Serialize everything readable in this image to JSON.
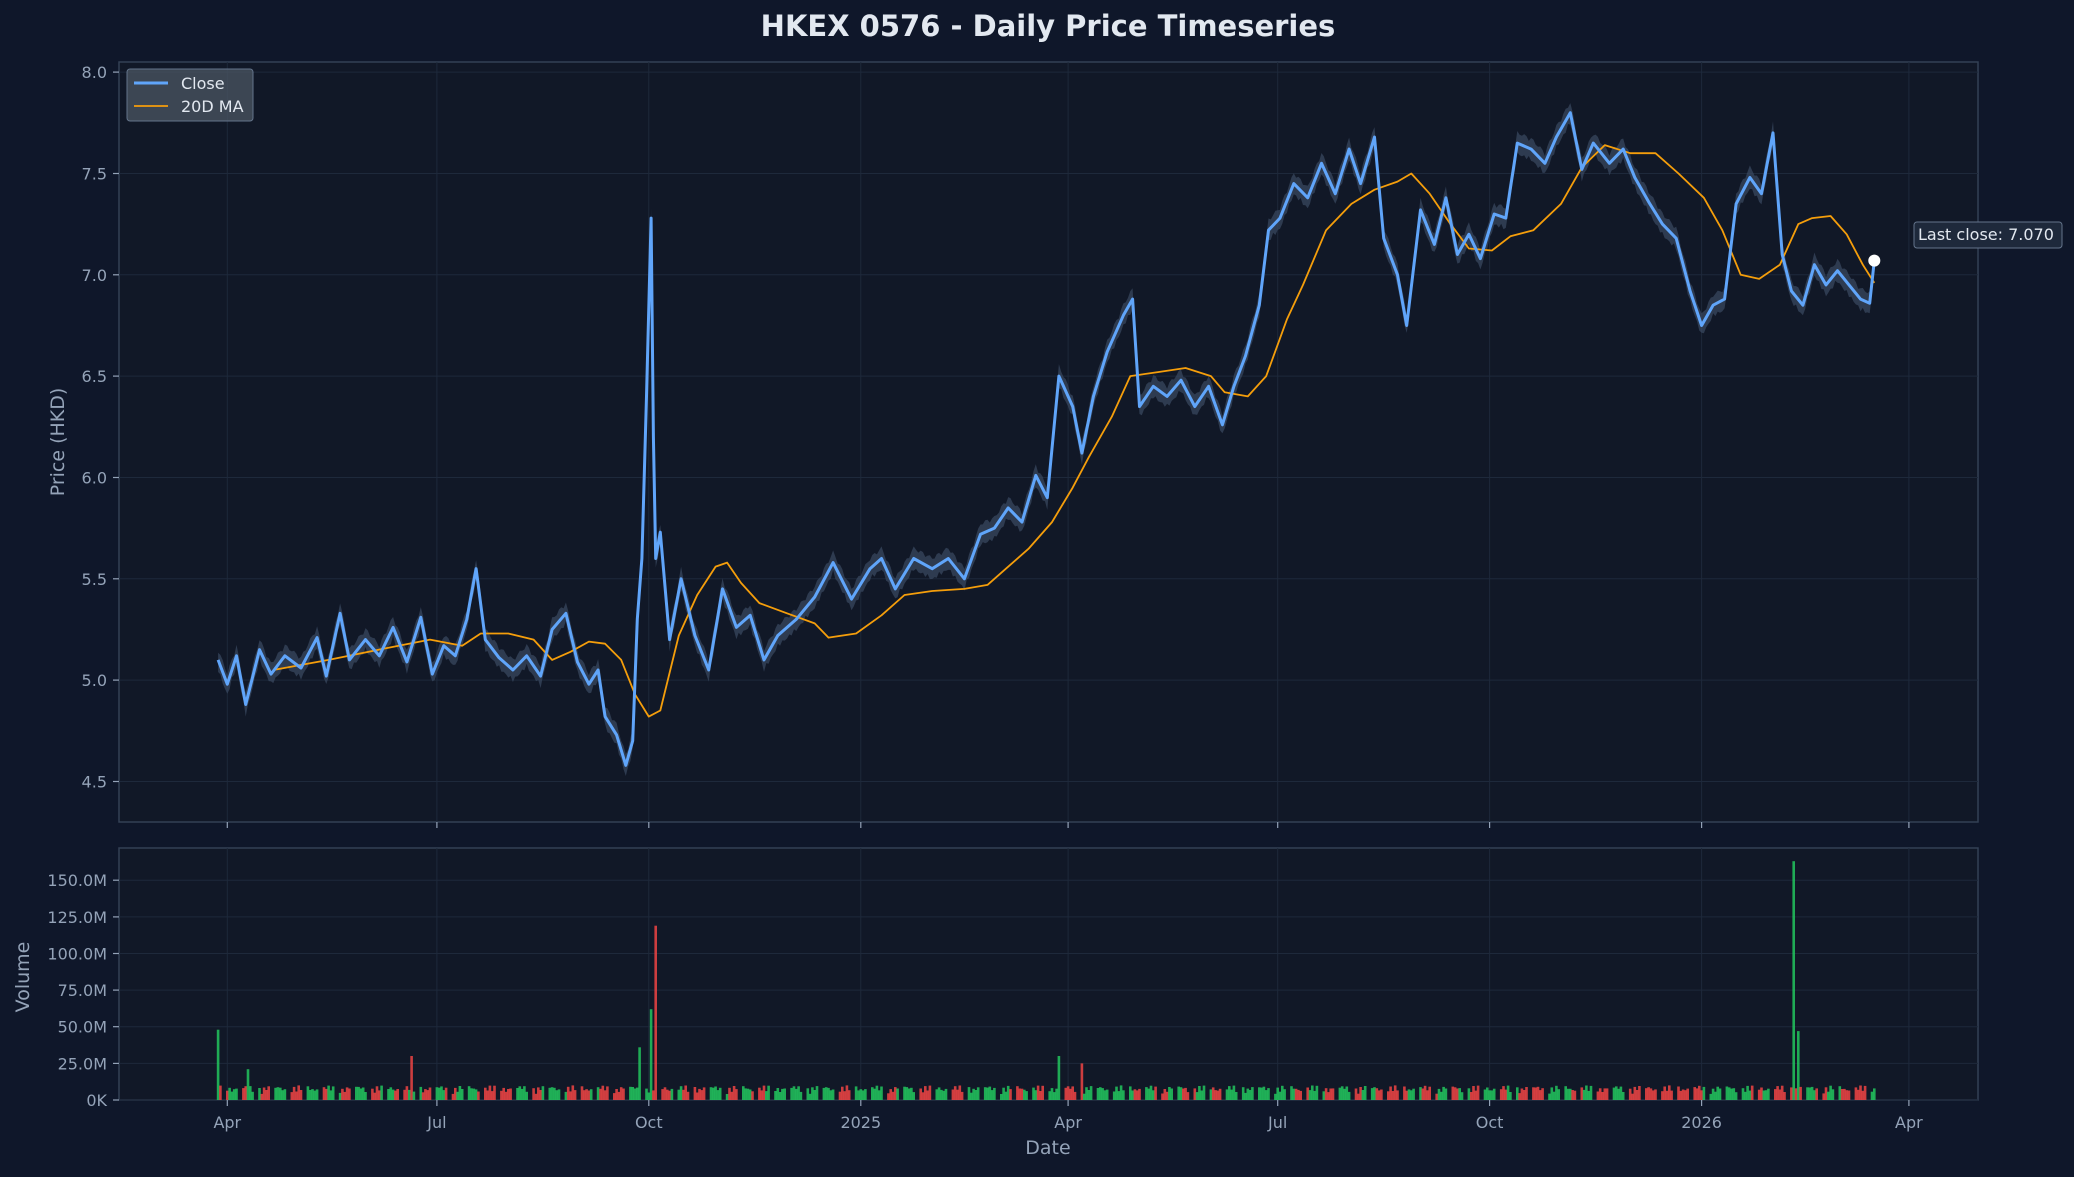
{
  "title": "HKEX 0576 - Daily Price Timeseries",
  "colors": {
    "background": "#0f172a",
    "panel": "#111827",
    "grid": "#1e293b",
    "spine": "#334155",
    "close": "#60a5fa",
    "ma": "#f59e0b",
    "band": "#3b4a63",
    "up": "#22c55e",
    "down": "#ef4444",
    "text": "#94a3b8",
    "title": "#e2e8f0"
  },
  "chart_data": {
    "type": "line",
    "title": "HKEX 0576 - Daily Price Timeseries",
    "xlabel": "Date",
    "ylabel": "Price (HKD)",
    "volume_ylabel": "Volume",
    "x_ticks": [
      {
        "date": "2024-04-01",
        "label": "Apr"
      },
      {
        "date": "2024-07-01",
        "label": "Jul"
      },
      {
        "date": "2024-10-01",
        "label": "Oct"
      },
      {
        "date": "2025-01-01",
        "label": "2025"
      },
      {
        "date": "2025-04-01",
        "label": "Apr"
      },
      {
        "date": "2025-07-01",
        "label": "Jul"
      },
      {
        "date": "2025-10-01",
        "label": "Oct"
      },
      {
        "date": "2026-01-01",
        "label": "2026"
      },
      {
        "date": "2026-04-01",
        "label": "Apr"
      }
    ],
    "xlim": [
      "2024-02-14",
      "2026-05-01"
    ],
    "price_ylim": [
      4.3,
      8.05
    ],
    "price_ticks": [
      4.5,
      5.0,
      5.5,
      6.0,
      6.5,
      7.0,
      7.5,
      8.0
    ],
    "price_tick_labels": [
      "4.5",
      "5.0",
      "5.5",
      "6.0",
      "6.5",
      "7.0",
      "7.5",
      "8.0"
    ],
    "volume_ylim": [
      0,
      172000000
    ],
    "volume_ticks": [
      0,
      25000000,
      50000000,
      75000000,
      100000000,
      125000000,
      150000000
    ],
    "volume_tick_labels": [
      "0K",
      "25.0M",
      "50.0M",
      "75.0M",
      "100.0M",
      "125.0M",
      "150.0M"
    ],
    "grid": true,
    "legend_position": "top-left",
    "series": [
      {
        "name": "Close",
        "points": [
          [
            "2024-03-28",
            5.1
          ],
          [
            "2024-04-01",
            4.98
          ],
          [
            "2024-04-05",
            5.12
          ],
          [
            "2024-04-09",
            4.88
          ],
          [
            "2024-04-15",
            5.15
          ],
          [
            "2024-04-20",
            5.03
          ],
          [
            "2024-04-26",
            5.12
          ],
          [
            "2024-05-03",
            5.06
          ],
          [
            "2024-05-10",
            5.21
          ],
          [
            "2024-05-14",
            5.02
          ],
          [
            "2024-05-20",
            5.33
          ],
          [
            "2024-05-24",
            5.1
          ],
          [
            "2024-05-31",
            5.2
          ],
          [
            "2024-06-06",
            5.12
          ],
          [
            "2024-06-12",
            5.26
          ],
          [
            "2024-06-18",
            5.09
          ],
          [
            "2024-06-24",
            5.31
          ],
          [
            "2024-06-29",
            5.03
          ],
          [
            "2024-07-04",
            5.17
          ],
          [
            "2024-07-09",
            5.12
          ],
          [
            "2024-07-14",
            5.3
          ],
          [
            "2024-07-18",
            5.55
          ],
          [
            "2024-07-22",
            5.2
          ],
          [
            "2024-07-28",
            5.11
          ],
          [
            "2024-08-03",
            5.05
          ],
          [
            "2024-08-09",
            5.12
          ],
          [
            "2024-08-15",
            5.02
          ],
          [
            "2024-08-20",
            5.25
          ],
          [
            "2024-08-26",
            5.33
          ],
          [
            "2024-08-31",
            5.09
          ],
          [
            "2024-09-05",
            4.98
          ],
          [
            "2024-09-09",
            5.05
          ],
          [
            "2024-09-12",
            4.82
          ],
          [
            "2024-09-17",
            4.73
          ],
          [
            "2024-09-21",
            4.58
          ],
          [
            "2024-09-24",
            4.7
          ],
          [
            "2024-09-26",
            5.3
          ],
          [
            "2024-09-28",
            5.6
          ],
          [
            "2024-09-30",
            6.4
          ],
          [
            "2024-10-02",
            7.28
          ],
          [
            "2024-10-03",
            6.2
          ],
          [
            "2024-10-04",
            5.6
          ],
          [
            "2024-10-06",
            5.73
          ],
          [
            "2024-10-10",
            5.2
          ],
          [
            "2024-10-15",
            5.5
          ],
          [
            "2024-10-21",
            5.22
          ],
          [
            "2024-10-27",
            5.05
          ],
          [
            "2024-11-02",
            5.45
          ],
          [
            "2024-11-08",
            5.26
          ],
          [
            "2024-11-14",
            5.32
          ],
          [
            "2024-11-20",
            5.1
          ],
          [
            "2024-11-26",
            5.22
          ],
          [
            "2024-12-04",
            5.3
          ],
          [
            "2024-12-12",
            5.41
          ],
          [
            "2024-12-20",
            5.58
          ],
          [
            "2024-12-28",
            5.4
          ],
          [
            "2025-01-05",
            5.55
          ],
          [
            "2025-01-10",
            5.6
          ],
          [
            "2025-01-16",
            5.45
          ],
          [
            "2025-01-24",
            5.6
          ],
          [
            "2025-02-01",
            5.55
          ],
          [
            "2025-02-08",
            5.6
          ],
          [
            "2025-02-15",
            5.5
          ],
          [
            "2025-02-22",
            5.72
          ],
          [
            "2025-02-28",
            5.75
          ],
          [
            "2025-03-06",
            5.85
          ],
          [
            "2025-03-12",
            5.78
          ],
          [
            "2025-03-18",
            6.01
          ],
          [
            "2025-03-23",
            5.9
          ],
          [
            "2025-03-28",
            6.5
          ],
          [
            "2025-04-03",
            6.35
          ],
          [
            "2025-04-07",
            6.12
          ],
          [
            "2025-04-12",
            6.4
          ],
          [
            "2025-04-18",
            6.62
          ],
          [
            "2025-04-25",
            6.8
          ],
          [
            "2025-04-29",
            6.88
          ],
          [
            "2025-05-02",
            6.35
          ],
          [
            "2025-05-08",
            6.45
          ],
          [
            "2025-05-14",
            6.4
          ],
          [
            "2025-05-20",
            6.48
          ],
          [
            "2025-05-26",
            6.35
          ],
          [
            "2025-06-01",
            6.45
          ],
          [
            "2025-06-07",
            6.26
          ],
          [
            "2025-06-12",
            6.45
          ],
          [
            "2025-06-17",
            6.6
          ],
          [
            "2025-06-23",
            6.85
          ],
          [
            "2025-06-27",
            7.22
          ],
          [
            "2025-07-02",
            7.28
          ],
          [
            "2025-07-08",
            7.45
          ],
          [
            "2025-07-14",
            7.38
          ],
          [
            "2025-07-20",
            7.55
          ],
          [
            "2025-07-26",
            7.4
          ],
          [
            "2025-08-01",
            7.62
          ],
          [
            "2025-08-06",
            7.45
          ],
          [
            "2025-08-12",
            7.68
          ],
          [
            "2025-08-16",
            7.18
          ],
          [
            "2025-08-22",
            7.0
          ],
          [
            "2025-08-26",
            6.75
          ],
          [
            "2025-09-01",
            7.32
          ],
          [
            "2025-09-07",
            7.15
          ],
          [
            "2025-09-12",
            7.38
          ],
          [
            "2025-09-17",
            7.1
          ],
          [
            "2025-09-22",
            7.2
          ],
          [
            "2025-09-27",
            7.08
          ],
          [
            "2025-10-03",
            7.3
          ],
          [
            "2025-10-08",
            7.28
          ],
          [
            "2025-10-13",
            7.65
          ],
          [
            "2025-10-19",
            7.62
          ],
          [
            "2025-10-25",
            7.55
          ],
          [
            "2025-10-30",
            7.68
          ],
          [
            "2025-11-05",
            7.8
          ],
          [
            "2025-11-10",
            7.52
          ],
          [
            "2025-11-15",
            7.65
          ],
          [
            "2025-11-22",
            7.55
          ],
          [
            "2025-11-28",
            7.62
          ],
          [
            "2025-12-03",
            7.48
          ],
          [
            "2025-12-09",
            7.36
          ],
          [
            "2025-12-15",
            7.25
          ],
          [
            "2025-12-21",
            7.18
          ],
          [
            "2025-12-27",
            6.92
          ],
          [
            "2026-01-01",
            6.75
          ],
          [
            "2026-01-06",
            6.85
          ],
          [
            "2026-01-11",
            6.88
          ],
          [
            "2026-01-16",
            7.35
          ],
          [
            "2026-01-22",
            7.48
          ],
          [
            "2026-01-27",
            7.4
          ],
          [
            "2026-02-01",
            7.7
          ],
          [
            "2026-02-05",
            7.1
          ],
          [
            "2026-02-09",
            6.92
          ],
          [
            "2026-02-14",
            6.85
          ],
          [
            "2026-02-19",
            7.05
          ],
          [
            "2026-02-24",
            6.95
          ],
          [
            "2026-03-01",
            7.02
          ],
          [
            "2026-03-06",
            6.95
          ],
          [
            "2026-03-11",
            6.88
          ],
          [
            "2026-03-15",
            6.86
          ],
          [
            "2026-03-17",
            7.07
          ]
        ]
      },
      {
        "name": "20D MA",
        "points": [
          [
            "2024-04-21",
            5.05
          ],
          [
            "2024-05-15",
            5.1
          ],
          [
            "2024-06-10",
            5.16
          ],
          [
            "2024-06-28",
            5.2
          ],
          [
            "2024-07-12",
            5.17
          ],
          [
            "2024-07-20",
            5.23
          ],
          [
            "2024-08-01",
            5.23
          ],
          [
            "2024-08-12",
            5.2
          ],
          [
            "2024-08-20",
            5.1
          ],
          [
            "2024-08-28",
            5.14
          ],
          [
            "2024-09-05",
            5.19
          ],
          [
            "2024-09-12",
            5.18
          ],
          [
            "2024-09-19",
            5.1
          ],
          [
            "2024-09-25",
            4.93
          ],
          [
            "2024-10-01",
            4.82
          ],
          [
            "2024-10-06",
            4.85
          ],
          [
            "2024-10-14",
            5.22
          ],
          [
            "2024-10-22",
            5.42
          ],
          [
            "2024-10-30",
            5.56
          ],
          [
            "2024-11-04",
            5.58
          ],
          [
            "2024-11-10",
            5.48
          ],
          [
            "2024-11-18",
            5.38
          ],
          [
            "2024-11-30",
            5.33
          ],
          [
            "2024-12-12",
            5.28
          ],
          [
            "2024-12-18",
            5.21
          ],
          [
            "2024-12-30",
            5.23
          ],
          [
            "2025-01-10",
            5.32
          ],
          [
            "2025-01-20",
            5.42
          ],
          [
            "2025-02-01",
            5.44
          ],
          [
            "2025-02-15",
            5.45
          ],
          [
            "2025-02-25",
            5.47
          ],
          [
            "2025-03-05",
            5.55
          ],
          [
            "2025-03-15",
            5.65
          ],
          [
            "2025-03-25",
            5.78
          ],
          [
            "2025-04-03",
            5.95
          ],
          [
            "2025-04-10",
            6.1
          ],
          [
            "2025-04-20",
            6.3
          ],
          [
            "2025-04-28",
            6.5
          ],
          [
            "2025-05-10",
            6.52
          ],
          [
            "2025-05-22",
            6.54
          ],
          [
            "2025-06-02",
            6.5
          ],
          [
            "2025-06-08",
            6.42
          ],
          [
            "2025-06-18",
            6.4
          ],
          [
            "2025-06-26",
            6.5
          ],
          [
            "2025-07-05",
            6.78
          ],
          [
            "2025-07-12",
            6.95
          ],
          [
            "2025-07-22",
            7.22
          ],
          [
            "2025-08-02",
            7.35
          ],
          [
            "2025-08-12",
            7.42
          ],
          [
            "2025-08-22",
            7.46
          ],
          [
            "2025-08-28",
            7.5
          ],
          [
            "2025-09-05",
            7.4
          ],
          [
            "2025-09-14",
            7.25
          ],
          [
            "2025-09-22",
            7.13
          ],
          [
            "2025-10-02",
            7.12
          ],
          [
            "2025-10-10",
            7.19
          ],
          [
            "2025-10-20",
            7.22
          ],
          [
            "2025-11-01",
            7.35
          ],
          [
            "2025-11-10",
            7.53
          ],
          [
            "2025-11-20",
            7.64
          ],
          [
            "2025-12-01",
            7.6
          ],
          [
            "2025-12-12",
            7.6
          ],
          [
            "2025-12-22",
            7.5
          ],
          [
            "2026-01-02",
            7.38
          ],
          [
            "2026-01-10",
            7.22
          ],
          [
            "2026-01-18",
            7.0
          ],
          [
            "2026-01-26",
            6.98
          ],
          [
            "2026-02-04",
            7.05
          ],
          [
            "2026-02-12",
            7.25
          ],
          [
            "2026-02-18",
            7.28
          ],
          [
            "2026-02-26",
            7.29
          ],
          [
            "2026-03-05",
            7.2
          ],
          [
            "2026-03-12",
            7.05
          ],
          [
            "2026-03-17",
            6.96
          ]
        ]
      }
    ],
    "volume_spikes": [
      {
        "date": "2024-03-28",
        "value": 48000000,
        "direction": "up"
      },
      {
        "date": "2024-04-10",
        "value": 21000000,
        "direction": "up"
      },
      {
        "date": "2024-05-25",
        "value": 31000000,
        "direction": "up"
      },
      {
        "date": "2024-06-20",
        "value": 30000000,
        "direction": "down"
      },
      {
        "date": "2024-09-27",
        "value": 36000000,
        "direction": "up"
      },
      {
        "date": "2024-10-02",
        "value": 62000000,
        "direction": "up"
      },
      {
        "date": "2024-10-04",
        "value": 119000000,
        "direction": "down"
      },
      {
        "date": "2024-10-05",
        "value": 50000000,
        "direction": "down"
      },
      {
        "date": "2025-03-28",
        "value": 30000000,
        "direction": "up"
      },
      {
        "date": "2025-04-07",
        "value": 25000000,
        "direction": "down"
      },
      {
        "date": "2026-02-08",
        "value": 36000000,
        "direction": "up"
      },
      {
        "date": "2026-02-10",
        "value": 163000000,
        "direction": "up"
      },
      {
        "date": "2026-02-12",
        "value": 47000000,
        "direction": "up"
      }
    ],
    "annotation": {
      "label": "Last close: 7.070",
      "date": "2026-03-17",
      "value": 7.07
    }
  }
}
